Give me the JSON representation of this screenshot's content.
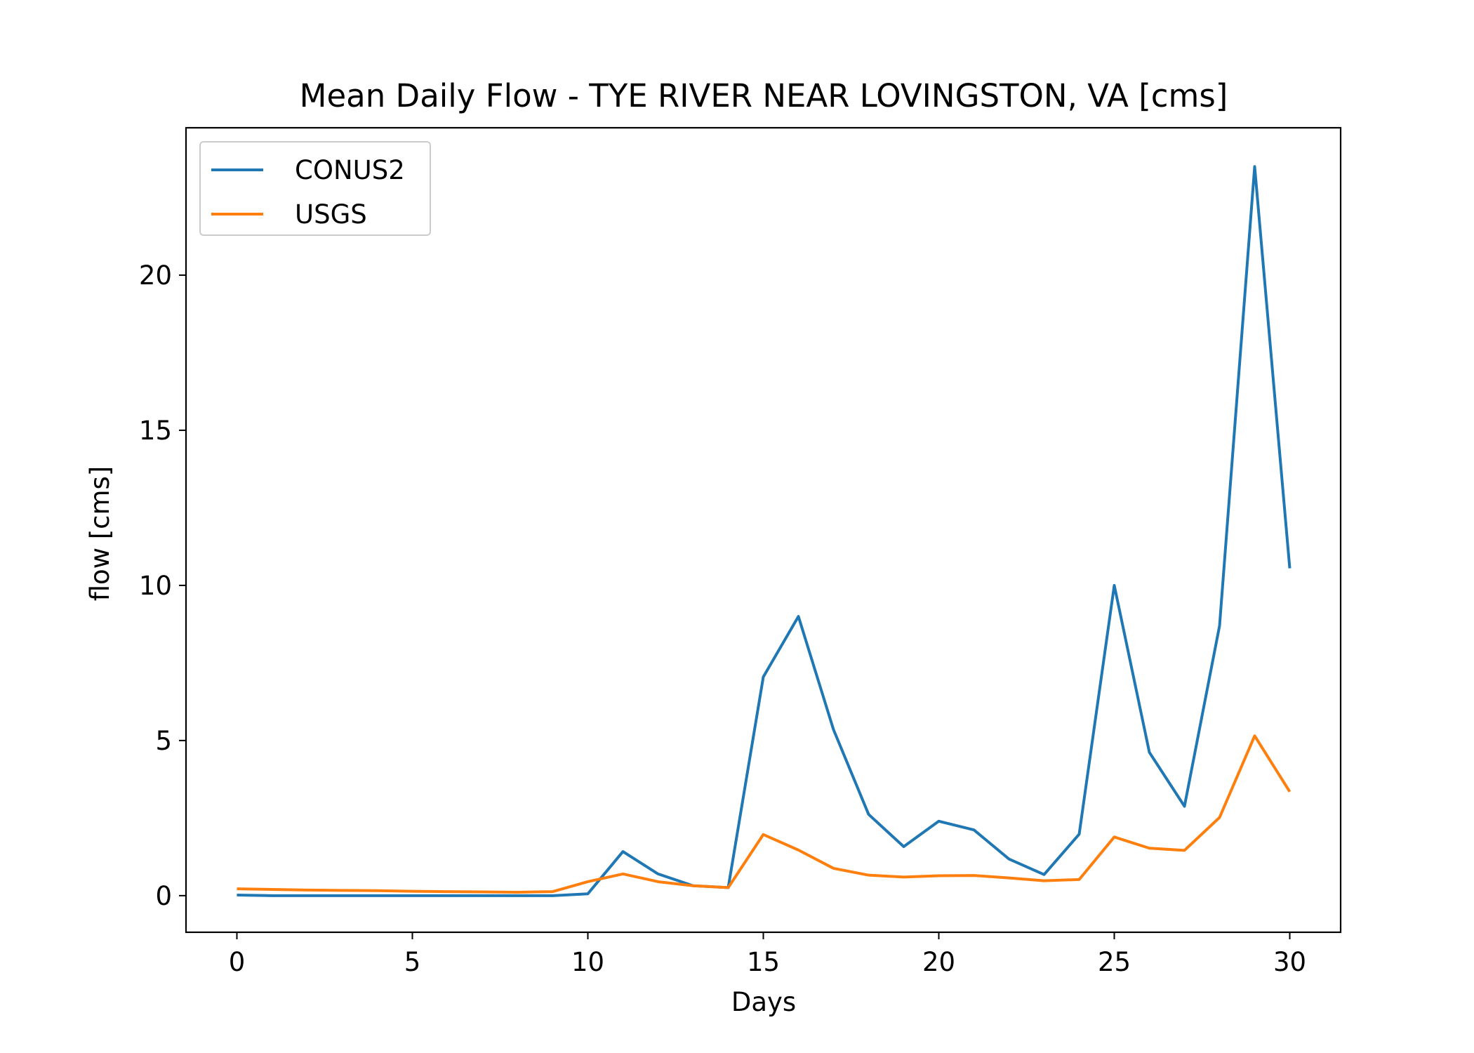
{
  "chart_data": {
    "type": "line",
    "title": "Mean Daily Flow - TYE RIVER NEAR LOVINGSTON, VA [cms]",
    "xlabel": "Days",
    "ylabel": "flow [cms]",
    "xlim": [
      -1.45,
      31.45
    ],
    "ylim": [
      -1.18,
      24.75
    ],
    "xticks": [
      0,
      5,
      10,
      15,
      20,
      25,
      30
    ],
    "yticks": [
      0,
      5,
      10,
      15,
      20
    ],
    "grid": false,
    "legend_position": "top-left",
    "x": [
      0,
      1,
      2,
      3,
      4,
      5,
      6,
      7,
      8,
      9,
      10,
      11,
      12,
      13,
      14,
      15,
      16,
      17,
      18,
      19,
      20,
      21,
      22,
      23,
      24,
      25,
      26,
      27,
      28,
      29,
      30
    ],
    "series": [
      {
        "name": "CONUS2",
        "color": "#1f77b4",
        "values": [
          0.02,
          0.0,
          0.0,
          0.0,
          0.0,
          0.0,
          0.0,
          0.0,
          0.0,
          0.0,
          0.06,
          1.42,
          0.7,
          0.32,
          0.26,
          7.05,
          9.0,
          5.35,
          2.62,
          1.58,
          2.4,
          2.12,
          1.18,
          0.68,
          1.98,
          10.0,
          4.62,
          2.88,
          8.7,
          23.5,
          10.55
        ]
      },
      {
        "name": "USGS",
        "color": "#ff7f0e",
        "values": [
          0.22,
          0.2,
          0.18,
          0.17,
          0.16,
          0.14,
          0.13,
          0.12,
          0.11,
          0.13,
          0.45,
          0.7,
          0.45,
          0.32,
          0.26,
          1.97,
          1.47,
          0.88,
          0.66,
          0.6,
          0.64,
          0.65,
          0.57,
          0.48,
          0.52,
          1.89,
          1.53,
          1.46,
          2.52,
          5.15,
          3.35
        ]
      }
    ]
  }
}
